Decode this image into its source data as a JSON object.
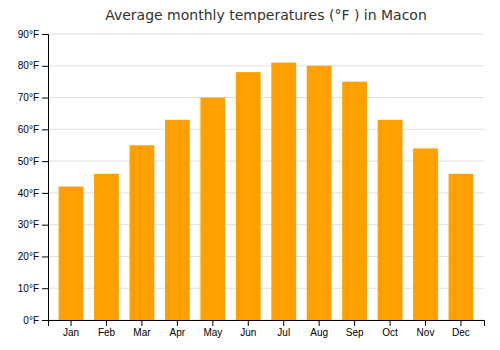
{
  "chart_data": {
    "type": "bar",
    "title": "Average monthly temperatures (°F ) in Macon",
    "categories": [
      "Jan",
      "Feb",
      "Mar",
      "Apr",
      "May",
      "Jun",
      "Jul",
      "Aug",
      "Sep",
      "Oct",
      "Nov",
      "Dec"
    ],
    "values": [
      42,
      46,
      55,
      63,
      70,
      78,
      81,
      80,
      75,
      63,
      54,
      46
    ],
    "color": "#FFA000",
    "ylim": [
      0,
      90
    ],
    "yticks": [
      {
        "value": 0,
        "label": "0°F"
      },
      {
        "value": 10,
        "label": "10°F"
      },
      {
        "value": 20,
        "label": "20°F"
      },
      {
        "value": 30,
        "label": "30°F"
      },
      {
        "value": 40,
        "label": "40°F"
      },
      {
        "value": 50,
        "label": "50°F"
      },
      {
        "value": 60,
        "label": "60°F"
      },
      {
        "value": 70,
        "label": "70°F"
      },
      {
        "value": 80,
        "label": "80°F"
      },
      {
        "value": 90,
        "label": "90°F"
      }
    ],
    "grid": true
  }
}
